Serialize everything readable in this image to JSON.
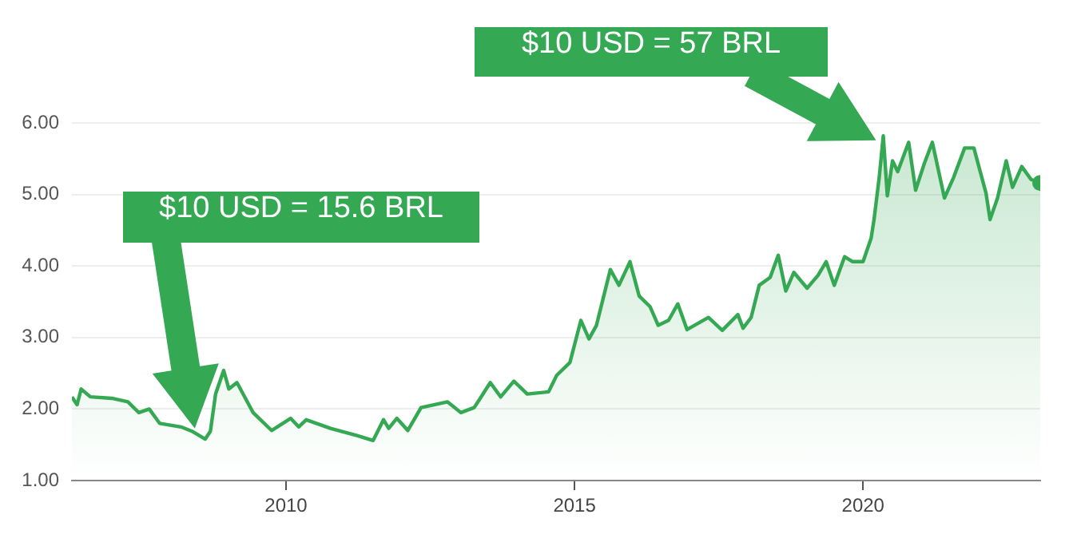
{
  "chart_data": {
    "type": "area",
    "x": [
      2006.29,
      2006.38,
      2006.45,
      2006.61,
      2006.98,
      2007.26,
      2007.45,
      2007.63,
      2007.81,
      2008.18,
      2008.37,
      2008.6,
      2008.69,
      2008.78,
      2008.92,
      2009.01,
      2009.15,
      2009.43,
      2009.75,
      2010.08,
      2010.22,
      2010.35,
      2010.77,
      2011.23,
      2011.51,
      2011.69,
      2011.78,
      2011.92,
      2012.11,
      2012.34,
      2012.8,
      2013.03,
      2013.26,
      2013.35,
      2013.54,
      2013.72,
      2013.95,
      2014.18,
      2014.55,
      2014.69,
      2014.92,
      2015.11,
      2015.25,
      2015.38,
      2015.62,
      2015.77,
      2015.96,
      2016.12,
      2016.31,
      2016.45,
      2016.63,
      2016.79,
      2016.95,
      2017.32,
      2017.56,
      2017.83,
      2017.92,
      2018.06,
      2018.2,
      2018.39,
      2018.53,
      2018.66,
      2018.8,
      2019.03,
      2019.22,
      2019.36,
      2019.5,
      2019.68,
      2019.82,
      2020.0,
      2020.14,
      2020.19,
      2020.28,
      2020.35,
      2020.42,
      2020.51,
      2020.6,
      2020.79,
      2020.91,
      2021.06,
      2021.2,
      2021.41,
      2021.57,
      2021.76,
      2021.92,
      2022.13,
      2022.2,
      2022.33,
      2022.48,
      2022.59,
      2022.75,
      2022.91,
      2023.07
    ],
    "series": [
      {
        "color": "#34a853",
        "values": [
          2.17,
          2.06,
          2.28,
          2.17,
          2.15,
          2.1,
          1.95,
          2.0,
          1.8,
          1.75,
          1.69,
          1.58,
          1.69,
          2.21,
          2.54,
          2.28,
          2.37,
          1.95,
          1.7,
          1.87,
          1.75,
          1.85,
          1.73,
          1.63,
          1.56,
          1.85,
          1.73,
          1.87,
          1.7,
          2.02,
          2.1,
          1.95,
          2.02,
          2.13,
          2.37,
          2.17,
          2.39,
          2.21,
          2.24,
          2.47,
          2.65,
          3.24,
          2.98,
          3.17,
          3.95,
          3.73,
          4.06,
          3.58,
          3.43,
          3.17,
          3.24,
          3.47,
          3.11,
          3.28,
          3.1,
          3.32,
          3.13,
          3.28,
          3.73,
          3.84,
          4.15,
          3.65,
          3.91,
          3.69,
          3.87,
          4.06,
          3.73,
          4.13,
          4.06,
          4.06,
          4.39,
          4.65,
          5.24,
          5.82,
          4.98,
          5.47,
          5.32,
          5.73,
          5.06,
          5.43,
          5.73,
          4.95,
          5.24,
          5.65,
          5.65,
          5.02,
          4.65,
          4.95,
          5.47,
          5.1,
          5.39,
          5.21,
          5.16
        ]
      }
    ],
    "xlim": [
      2006.29,
      2023.07
    ],
    "xticks": [
      2010,
      2015,
      2020
    ],
    "ylim": [
      1,
      6
    ],
    "yticks": [
      {
        "value": 1,
        "label": "1.00"
      },
      {
        "value": 2,
        "label": "2.00"
      },
      {
        "value": 3,
        "label": "3.00"
      },
      {
        "value": 4,
        "label": "4.00"
      },
      {
        "value": 5,
        "label": "5.00"
      },
      {
        "value": 6,
        "label": "6.00"
      }
    ],
    "grid": "y",
    "annotations": [
      "$10 USD = 15.6 BRL",
      "$10 USD = 57 BRL"
    ]
  }
}
